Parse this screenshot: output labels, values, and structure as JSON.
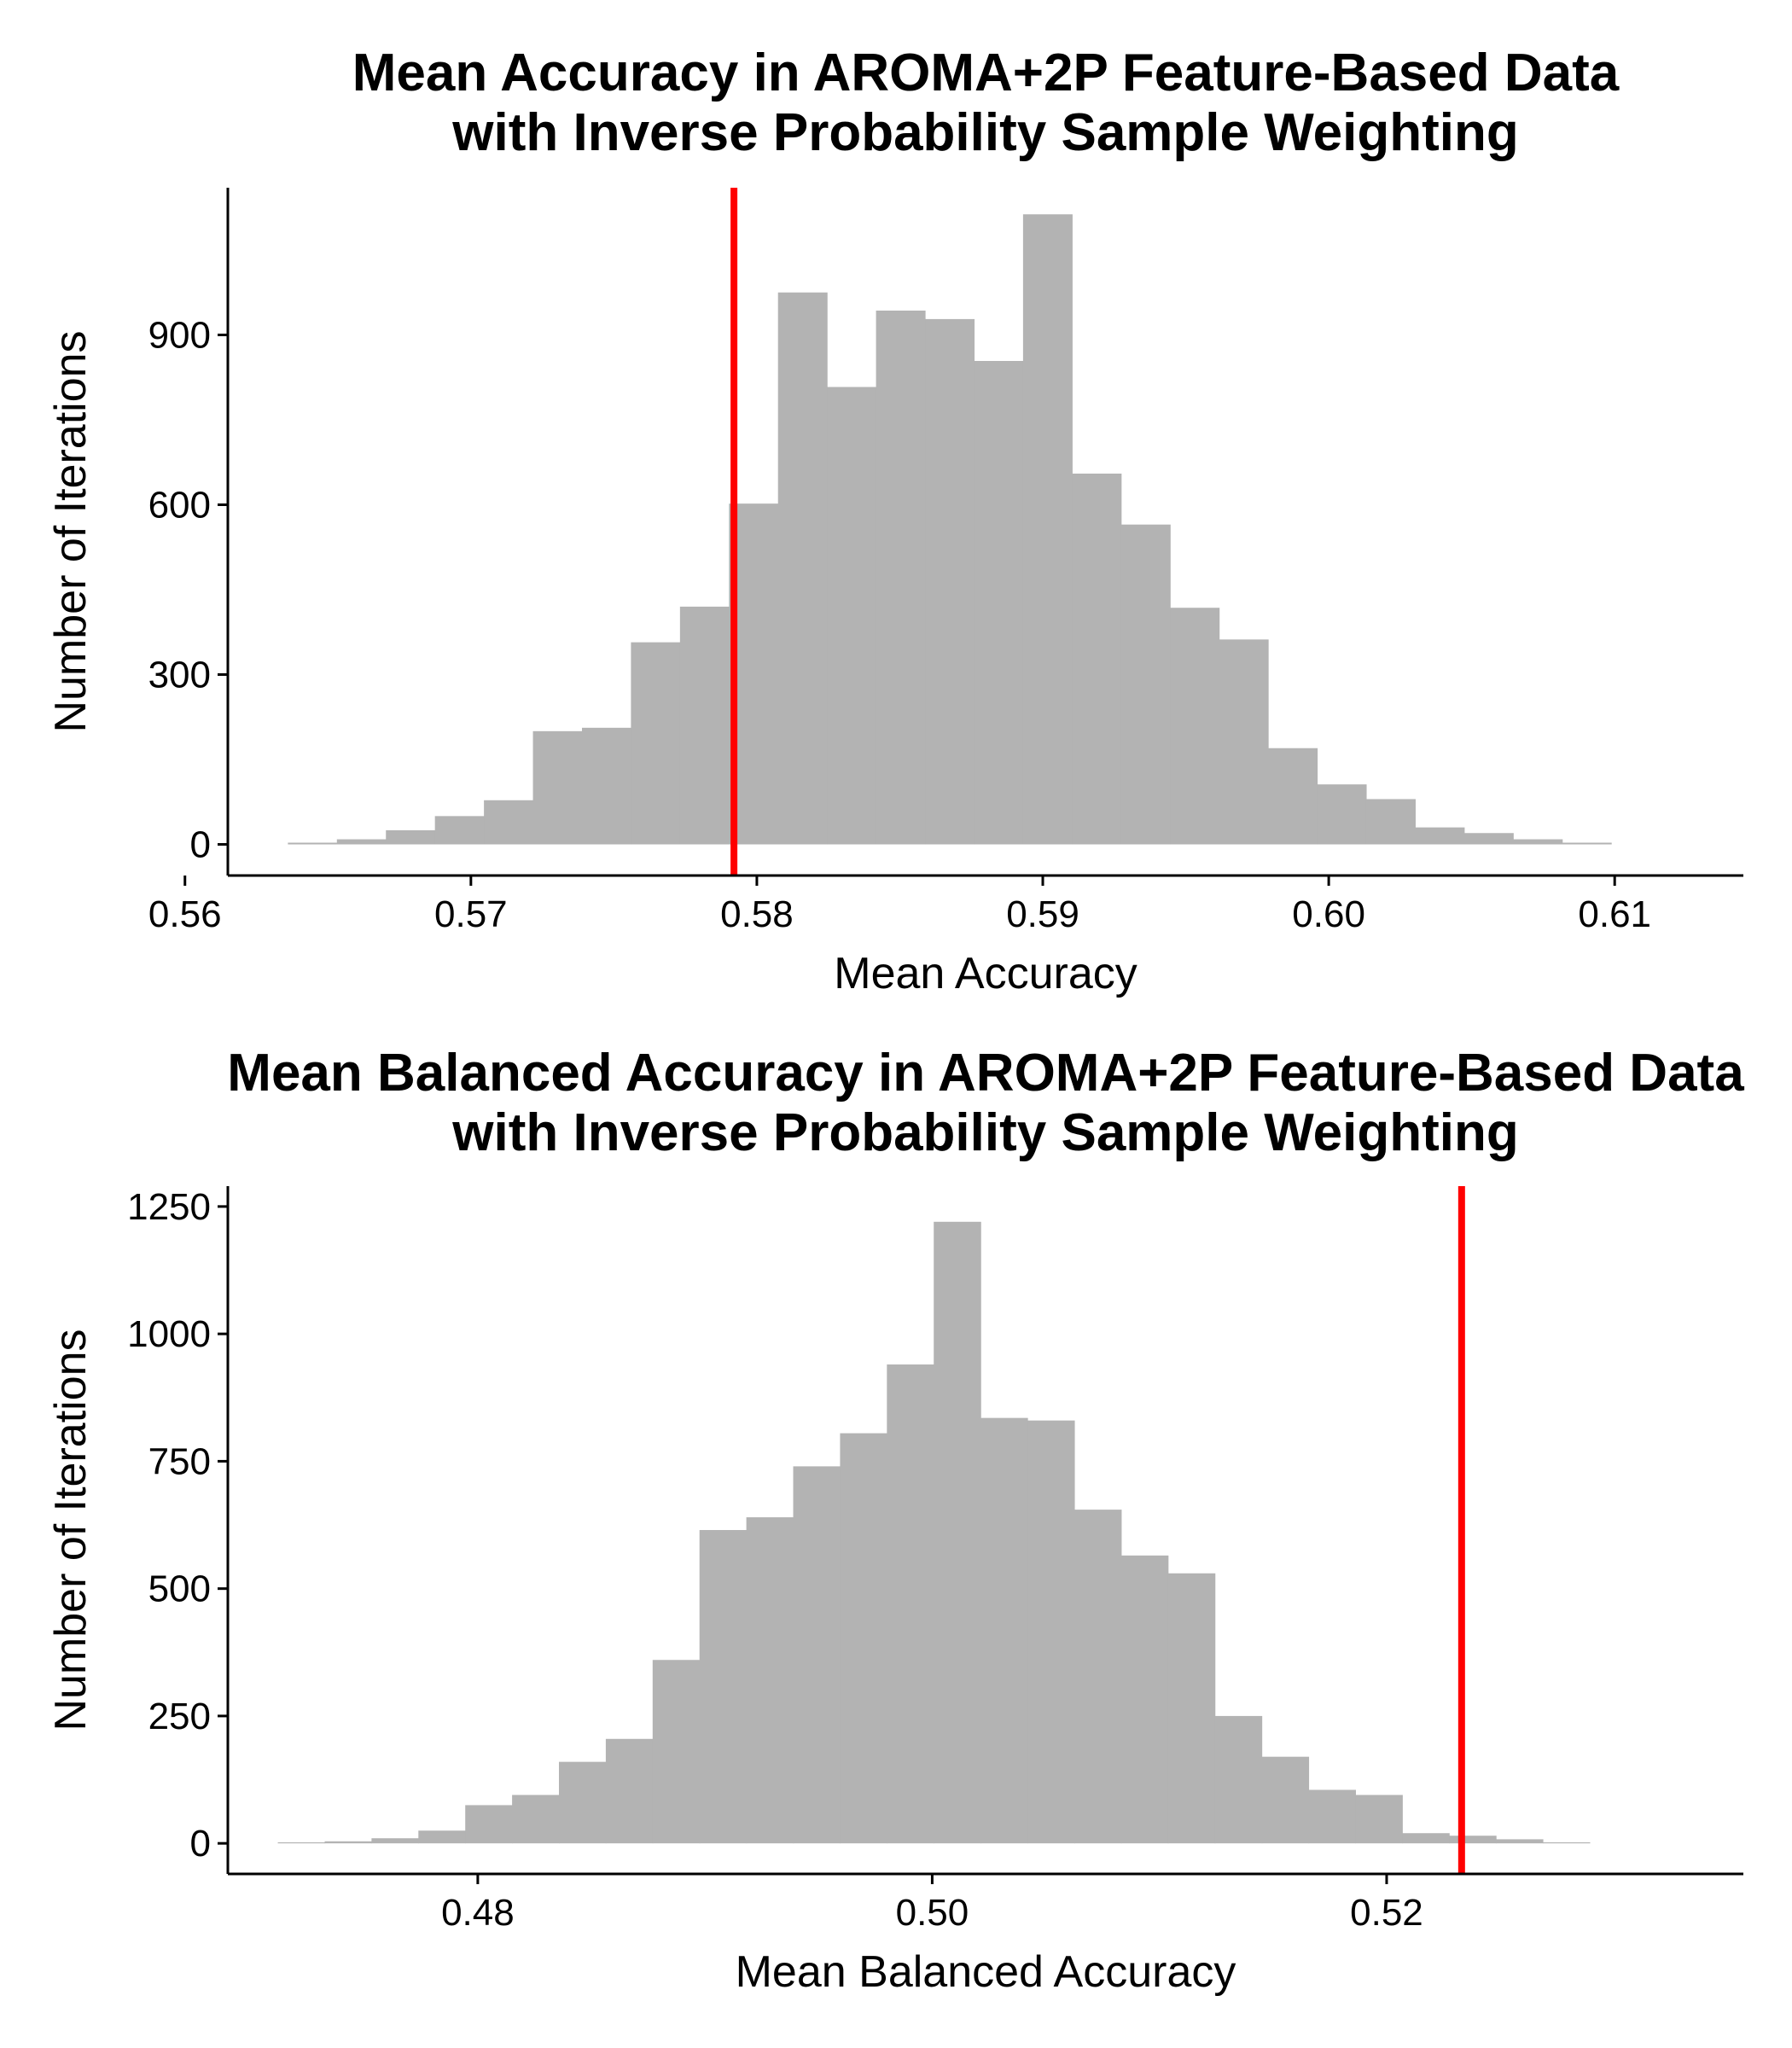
{
  "chart_data": [
    {
      "type": "bar",
      "title": [
        "Mean Accuracy in AROMA+2P Feature-Based Data",
        "with Inverse Probability Sample Weighting"
      ],
      "xlabel": "Mean Accuracy",
      "ylabel": "Number of Iterations",
      "xlim": [
        0.5615,
        0.6145
      ],
      "ylim": [
        -55,
        1160
      ],
      "xticks": [
        0.56,
        0.57,
        0.58,
        0.59,
        0.6,
        0.61
      ],
      "xtick_labels": [
        "0.56",
        "0.57",
        "0.58",
        "0.59",
        "0.60",
        "0.61"
      ],
      "yticks": [
        0,
        300,
        600,
        900
      ],
      "ytick_labels": [
        "0",
        "300",
        "600",
        "900"
      ],
      "bin_start": 0.5636,
      "bin_width": 0.001714,
      "values": [
        3,
        9,
        25,
        50,
        78,
        200,
        206,
        357,
        420,
        602,
        975,
        808,
        943,
        928,
        854,
        1113,
        655,
        565,
        418,
        362,
        170,
        106,
        80,
        30,
        20,
        9,
        3
      ],
      "bar_color": "#b3b3b3",
      "reference_line": {
        "x": 0.5792,
        "color": "#ff0000"
      },
      "grid": false,
      "legend": "none"
    },
    {
      "type": "bar",
      "title": [
        "Mean Balanced Accuracy in AROMA+2P Feature-Based Data",
        "with Inverse Probability Sample Weighting"
      ],
      "xlabel": "Mean Balanced Accuracy",
      "ylabel": "Number of Iterations",
      "xlim": [
        0.469,
        0.5357
      ],
      "ylim": [
        -60,
        1290
      ],
      "xticks": [
        0.48,
        0.5,
        0.52
      ],
      "xtick_labels": [
        "0.48",
        "0.50",
        "0.52"
      ],
      "yticks": [
        0,
        250,
        500,
        750,
        1000,
        1250
      ],
      "ytick_labels": [
        "0",
        "250",
        "500",
        "750",
        "1000",
        "1250"
      ],
      "bin_start": 0.4712,
      "bin_width": 0.002062,
      "values": [
        2,
        4,
        10,
        25,
        75,
        95,
        160,
        205,
        360,
        615,
        640,
        740,
        805,
        940,
        1220,
        835,
        830,
        655,
        565,
        530,
        250,
        170,
        105,
        95,
        20,
        15,
        8,
        2
      ],
      "bar_color": "#b3b3b3",
      "reference_line": {
        "x": 0.5233,
        "color": "#ff0000"
      },
      "grid": false,
      "legend": "none"
    }
  ]
}
